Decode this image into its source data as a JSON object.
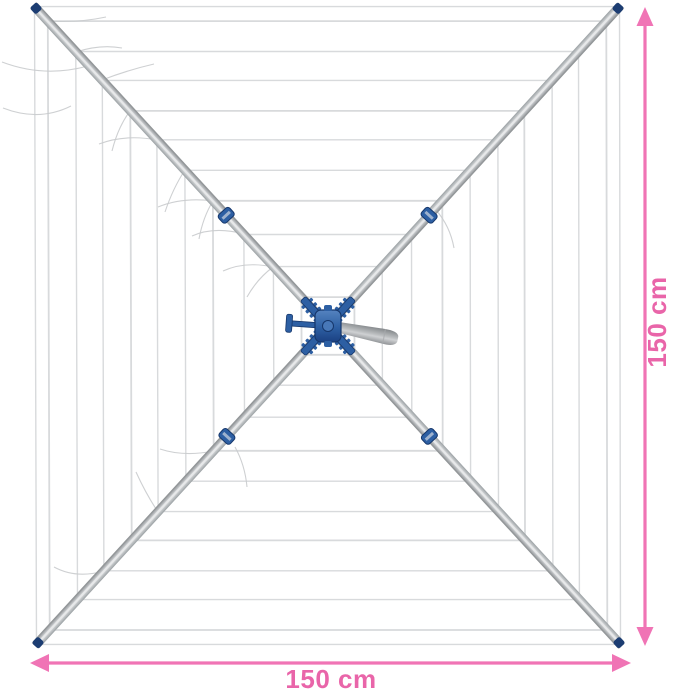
{
  "annotations": {
    "width_label": "150 cm",
    "height_label": "150 cm",
    "accent_color": "#f074b5",
    "label_color": "#e965a9"
  },
  "illustration": {
    "background_color": "#ffffff",
    "frame_color": "#b9bcbf",
    "frame_highlight_color": "#e9eaeb",
    "frame_shadow_color": "#8f9396",
    "tip_cap_color": "#1c3d72",
    "hub_color": "#2d5fa3",
    "hub_dark_color": "#16376b",
    "hub_light_color": "#4878b8",
    "handle_color": "#a7aaad",
    "line_color": "#d8dadc",
    "wisp_color": "#c9cbcd",
    "arm_count": 4,
    "square_line_count": 11,
    "clip_count": 4
  }
}
